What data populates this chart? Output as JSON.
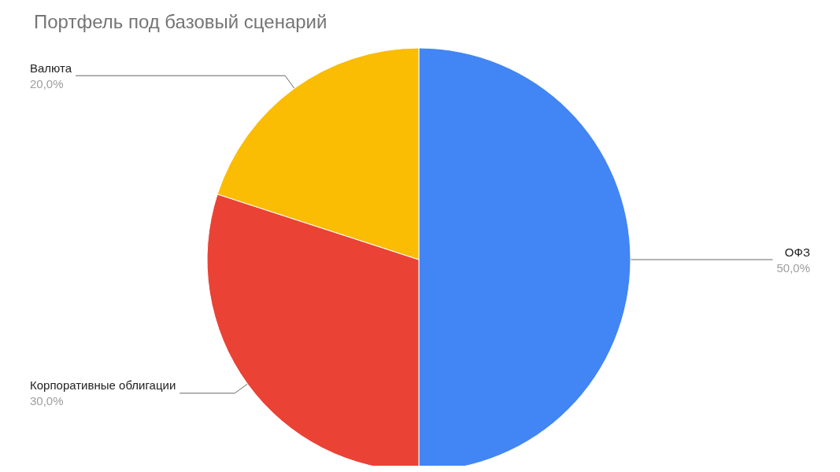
{
  "chart_data": {
    "type": "pie",
    "title": "Портфель под базовый сценарий",
    "categories": [
      "ОФЗ",
      "Корпоративные облигации",
      "Валюта"
    ],
    "values": [
      50,
      30,
      20
    ],
    "colors": [
      "#4285f4",
      "#ea4335",
      "#fbbc04"
    ],
    "value_labels": [
      "50,0%",
      "30,0%",
      "20,0%"
    ]
  }
}
